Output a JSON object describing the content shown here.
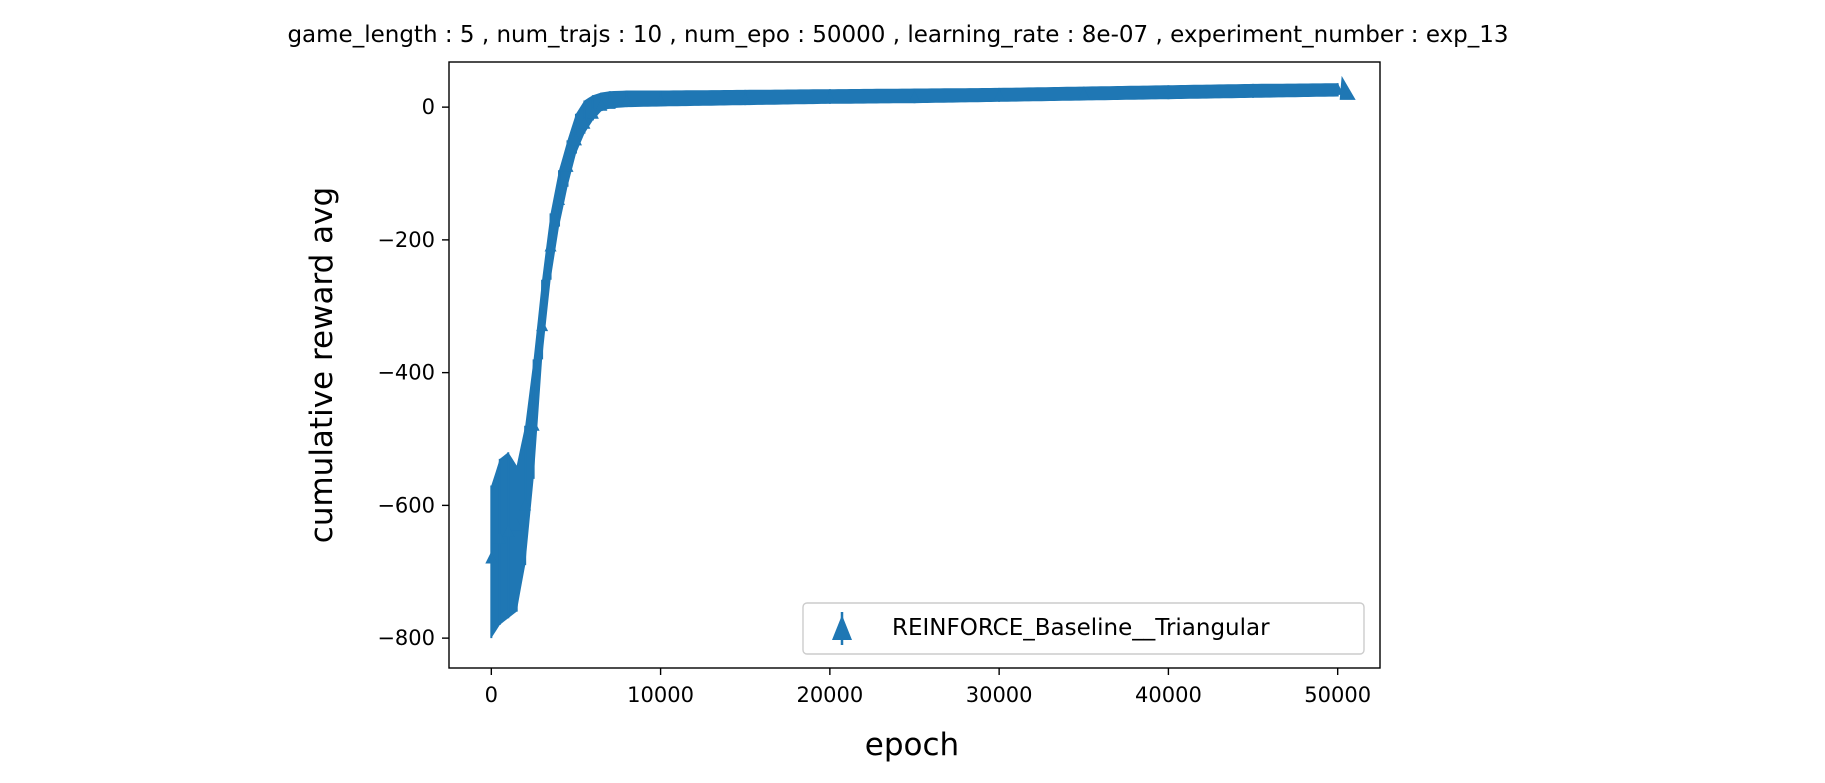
{
  "chart_data": {
    "type": "scatter",
    "title": "game_length : 5 , num_trajs : 10 , num_epo : 50000 , learning_rate : 8e-07 , experiment_number : exp_13",
    "xlabel": "epoch",
    "ylabel": "cumulative reward avg",
    "xlim": [
      -2500,
      52500
    ],
    "ylim": [
      -845,
      68
    ],
    "x_ticks": [
      0,
      10000,
      20000,
      30000,
      40000,
      50000
    ],
    "x_tick_labels": [
      "0",
      "10000",
      "20000",
      "30000",
      "40000",
      "50000"
    ],
    "y_ticks": [
      0,
      -200,
      -400,
      -600,
      -800
    ],
    "y_tick_labels": [
      "0",
      "−200",
      "−400",
      "−600",
      "−800"
    ],
    "grid": false,
    "legend_position": "lower-right",
    "marker": "triangle-up with error bars",
    "series": [
      {
        "name": "REINFORCE_Baseline__Triangular",
        "color": "#1f77b4",
        "x": [
          0,
          500,
          1000,
          1500,
          2000,
          2500,
          3000,
          3500,
          4000,
          4500,
          5000,
          5500,
          6000,
          6500,
          7000,
          8000,
          10000,
          15000,
          20000,
          25000,
          30000,
          35000,
          40000,
          45000,
          50000
        ],
        "y": [
          -680,
          -650,
          -640,
          -630,
          -600,
          -480,
          -330,
          -210,
          -140,
          -90,
          -50,
          -25,
          -10,
          2,
          5,
          8,
          9,
          11,
          13,
          14,
          16,
          19,
          22,
          24,
          26
        ],
        "y_low": [
          -800,
          -780,
          -770,
          -760,
          -690,
          -560,
          -380,
          -260,
          -180,
          -120,
          -70,
          -40,
          -20,
          -6,
          -2,
          0,
          1,
          3,
          5,
          6,
          8,
          10,
          12,
          14,
          16
        ],
        "y_high": [
          -570,
          -530,
          -520,
          -540,
          -480,
          -380,
          -260,
          -160,
          -95,
          -50,
          -10,
          10,
          18,
          22,
          24,
          25,
          25,
          26,
          27,
          28,
          29,
          31,
          33,
          35,
          36
        ]
      }
    ]
  }
}
